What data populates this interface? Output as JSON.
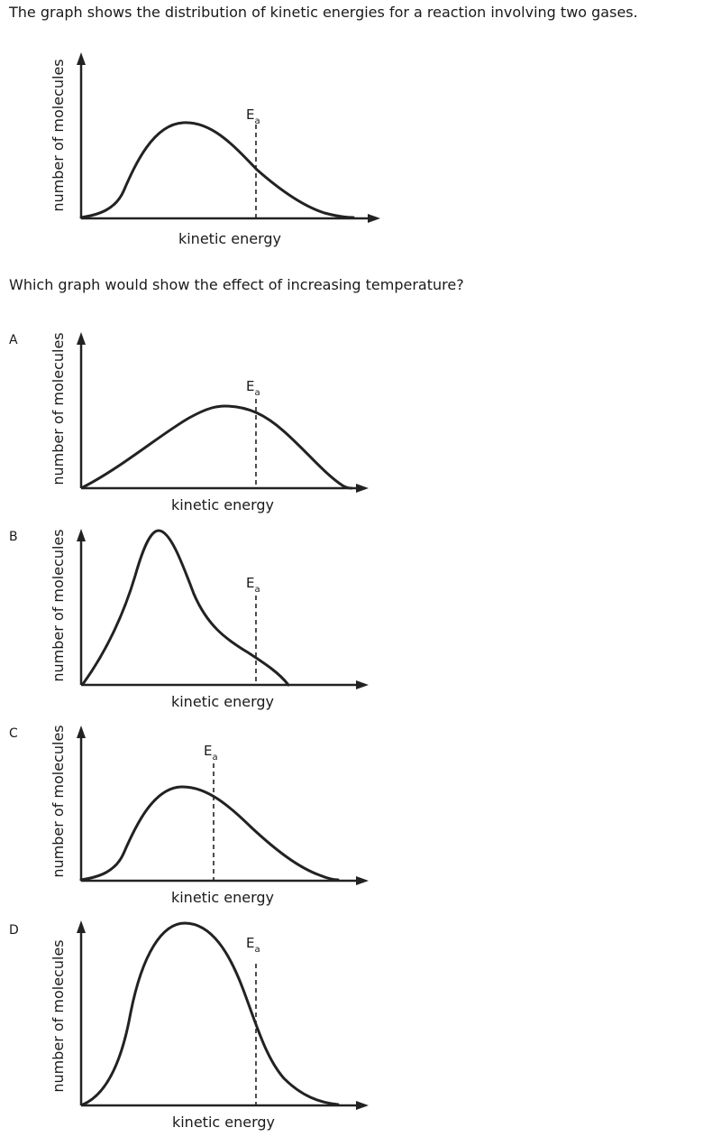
{
  "intro_text": "The graph shows the distribution of kinetic energies for a reaction involving two gases.",
  "question_text": "Which graph would show the effect of increasing temperature?",
  "axes": {
    "x_label": "kinetic energy",
    "y_label": "number of molecules"
  },
  "ea_label": {
    "main": "E",
    "sub": "a"
  },
  "options": [
    {
      "letter": "A"
    },
    {
      "letter": "B"
    },
    {
      "letter": "C"
    },
    {
      "letter": "D"
    }
  ]
}
